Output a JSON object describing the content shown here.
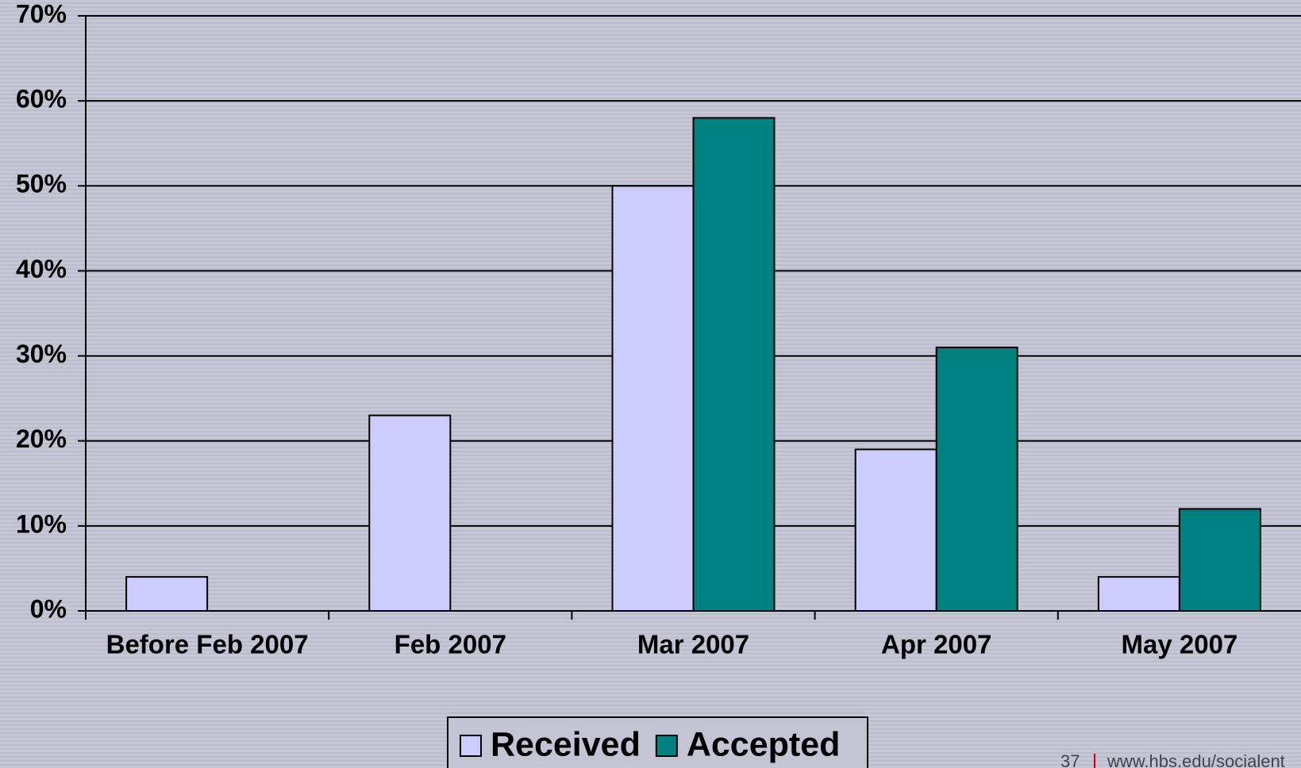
{
  "chart_data": {
    "type": "bar",
    "categories": [
      "Before Feb 2007",
      "Feb 2007",
      "Mar 2007",
      "Apr 2007",
      "May 2007"
    ],
    "series": [
      {
        "name": "Received",
        "color": "#ccccff",
        "values": [
          4,
          23,
          50,
          19,
          4
        ]
      },
      {
        "name": "Accepted",
        "color": "#008080",
        "values": [
          null,
          null,
          58,
          31,
          12
        ]
      }
    ],
    "ylim": [
      0,
      70
    ],
    "yticks": [
      {
        "value": 0,
        "label": "0%"
      },
      {
        "value": 10,
        "label": "10%"
      },
      {
        "value": 20,
        "label": "20%"
      },
      {
        "value": 30,
        "label": "30%"
      },
      {
        "value": 40,
        "label": "40%"
      },
      {
        "value": 50,
        "label": "50%"
      },
      {
        "value": 60,
        "label": "60%"
      },
      {
        "value": 70,
        "label": "70%"
      }
    ],
    "grid": true,
    "legend": "bottom"
  },
  "footer": {
    "page": "37",
    "url": "www.hbs.edu/socialent"
  }
}
